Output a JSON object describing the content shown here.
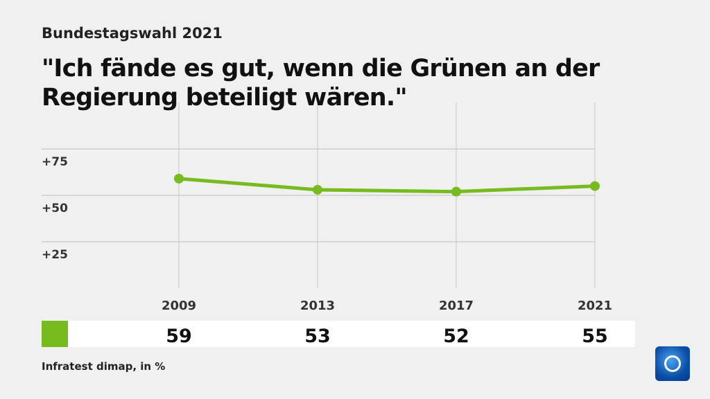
{
  "header": {
    "supertitle": "Bundestagswahl 2021",
    "title": "\"Ich fände es gut, wenn die Grünen an der Regierung beteiligt wären.\""
  },
  "source": "Infratest dimap, in %",
  "chart_data": {
    "type": "line",
    "title": "\"Ich fände es gut, wenn die Grünen an der Regierung beteiligt wären.\"",
    "categories": [
      "2009",
      "2013",
      "2017",
      "2021"
    ],
    "series": [
      {
        "values": [
          59,
          53,
          52,
          55
        ],
        "color": "#77bb1f"
      }
    ],
    "value_labels": [
      "59",
      "53",
      "52",
      "55"
    ],
    "yticks": [
      "+25",
      "+50",
      "+75"
    ],
    "ytick_values": [
      25,
      50,
      75
    ],
    "ylim": [
      0,
      100
    ],
    "grid": true
  },
  "logo": "tagesschau-logo"
}
